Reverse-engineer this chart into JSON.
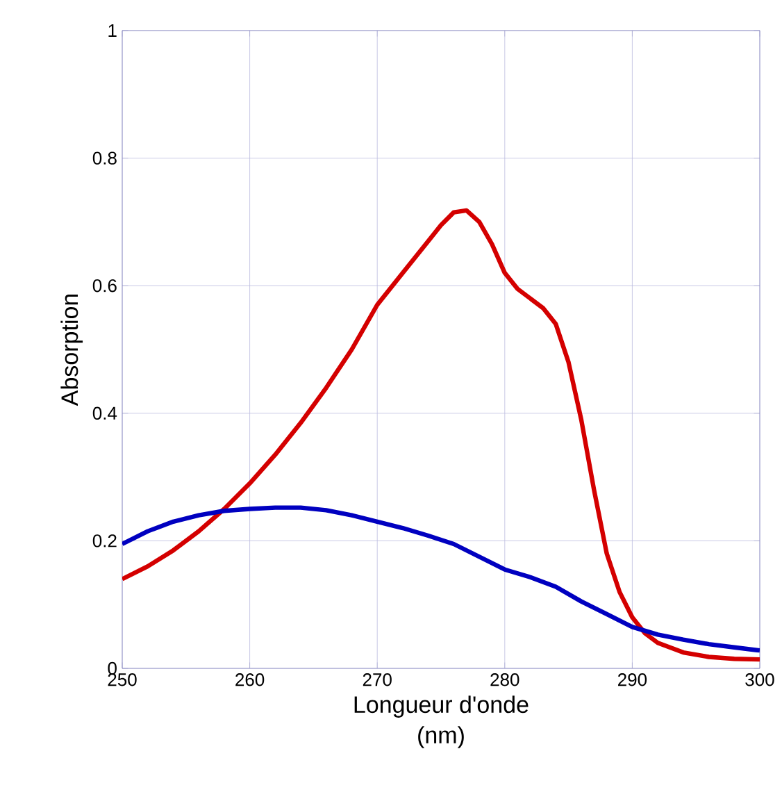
{
  "chart_data": {
    "type": "line",
    "xlabel": "Longueur d'onde\n(nm)",
    "ylabel": "Absorption",
    "xlim": [
      250,
      300
    ],
    "ylim": [
      0,
      1
    ],
    "xticks": [
      250,
      260,
      270,
      280,
      290,
      300
    ],
    "yticks": [
      0,
      0.2,
      0.4,
      0.6,
      0.8,
      1
    ],
    "grid": true,
    "line_style": "solid",
    "series": [
      {
        "color": "#d40000",
        "x": [
          250,
          252,
          254,
          256,
          258,
          260,
          262,
          264,
          266,
          268,
          270,
          272,
          274,
          275,
          276,
          277,
          278,
          279,
          280,
          281,
          282,
          283,
          284,
          285,
          286,
          287,
          288,
          289,
          290,
          291,
          292,
          294,
          296,
          298,
          300
        ],
        "values": [
          0.14,
          0.16,
          0.185,
          0.215,
          0.25,
          0.29,
          0.335,
          0.385,
          0.44,
          0.5,
          0.57,
          0.62,
          0.67,
          0.695,
          0.715,
          0.718,
          0.7,
          0.665,
          0.62,
          0.595,
          0.58,
          0.565,
          0.54,
          0.48,
          0.39,
          0.28,
          0.18,
          0.12,
          0.08,
          0.055,
          0.04,
          0.025,
          0.018,
          0.015,
          0.014
        ]
      },
      {
        "color": "#0000c0",
        "x": [
          250,
          252,
          254,
          256,
          258,
          260,
          262,
          264,
          266,
          268,
          270,
          272,
          274,
          276,
          278,
          280,
          282,
          284,
          286,
          288,
          290,
          292,
          294,
          296,
          298,
          300
        ],
        "values": [
          0.195,
          0.215,
          0.23,
          0.24,
          0.247,
          0.25,
          0.252,
          0.252,
          0.248,
          0.24,
          0.23,
          0.22,
          0.208,
          0.195,
          0.175,
          0.155,
          0.143,
          0.128,
          0.105,
          0.085,
          0.065,
          0.053,
          0.045,
          0.038,
          0.033,
          0.028
        ]
      }
    ]
  }
}
